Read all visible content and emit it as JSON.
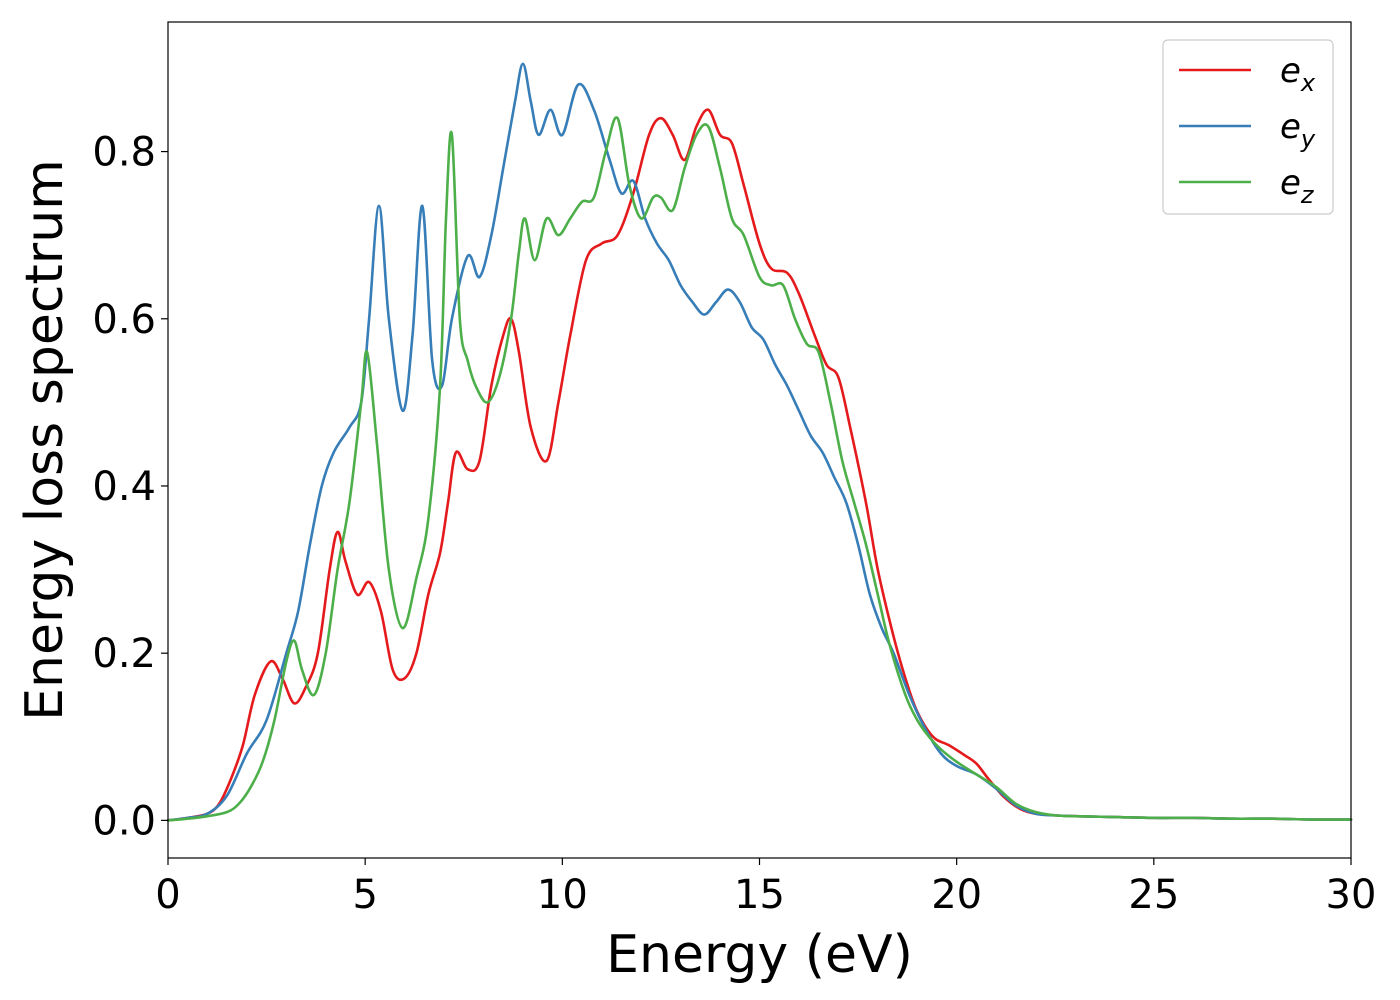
{
  "chart_data": {
    "type": "line",
    "title": "",
    "xlabel": "Energy (eV)",
    "ylabel": "Energy loss spectrum",
    "xlim": [
      0,
      30
    ],
    "ylim": [
      -0.045,
      0.955
    ],
    "xticks": [
      0,
      5,
      10,
      15,
      20,
      25,
      30
    ],
    "xtick_labels": [
      "0",
      "5",
      "10",
      "15",
      "20",
      "25",
      "30"
    ],
    "yticks": [
      0.0,
      0.2,
      0.4,
      0.6,
      0.8
    ],
    "ytick_labels": [
      "0.0",
      "0.2",
      "0.4",
      "0.6",
      "0.8"
    ],
    "grid": false,
    "legend_position": "top-right",
    "series": [
      {
        "name": "e",
        "subscript": "x",
        "color": "#e41a1c",
        "x": [
          0,
          0.5,
          1.0,
          1.3,
          1.6,
          1.9,
          2.2,
          2.6,
          2.9,
          3.2,
          3.5,
          3.8,
          4.1,
          4.3,
          4.5,
          4.8,
          5.1,
          5.4,
          5.7,
          6.0,
          6.3,
          6.6,
          6.9,
          7.1,
          7.3,
          7.6,
          7.9,
          8.2,
          8.5,
          8.7,
          8.9,
          9.2,
          9.6,
          9.9,
          10.2,
          10.6,
          11.0,
          11.4,
          11.8,
          12.2,
          12.5,
          12.8,
          13.1,
          13.4,
          13.7,
          14.0,
          14.3,
          14.6,
          15.0,
          15.3,
          15.7,
          16.0,
          16.4,
          16.7,
          17.0,
          17.3,
          17.7,
          18.0,
          18.4,
          18.7,
          19.0,
          19.4,
          19.8,
          20.2,
          20.5,
          20.8,
          21.2,
          21.6,
          22.0,
          22.5,
          23,
          24,
          25,
          26,
          27,
          28,
          29,
          30
        ],
        "y": [
          0.0,
          0.003,
          0.008,
          0.02,
          0.05,
          0.09,
          0.15,
          0.19,
          0.17,
          0.14,
          0.16,
          0.2,
          0.3,
          0.345,
          0.31,
          0.27,
          0.285,
          0.25,
          0.18,
          0.17,
          0.2,
          0.27,
          0.32,
          0.38,
          0.44,
          0.42,
          0.43,
          0.52,
          0.58,
          0.6,
          0.56,
          0.47,
          0.43,
          0.5,
          0.58,
          0.67,
          0.69,
          0.7,
          0.75,
          0.82,
          0.84,
          0.82,
          0.79,
          0.83,
          0.85,
          0.82,
          0.81,
          0.76,
          0.69,
          0.66,
          0.655,
          0.63,
          0.58,
          0.545,
          0.53,
          0.47,
          0.38,
          0.3,
          0.22,
          0.17,
          0.13,
          0.1,
          0.09,
          0.078,
          0.068,
          0.05,
          0.028,
          0.014,
          0.008,
          0.006,
          0.005,
          0.004,
          0.003,
          0.003,
          0.002,
          0.002,
          0.001,
          0.001
        ]
      },
      {
        "name": "e",
        "subscript": "y",
        "color": "#377eb8",
        "x": [
          0,
          0.5,
          1.0,
          1.5,
          2.0,
          2.5,
          3.0,
          3.3,
          3.6,
          3.9,
          4.2,
          4.6,
          4.9,
          5.1,
          5.35,
          5.6,
          5.95,
          6.2,
          6.45,
          6.7,
          6.95,
          7.2,
          7.6,
          7.9,
          8.2,
          8.5,
          8.8,
          9.0,
          9.2,
          9.4,
          9.7,
          10.0,
          10.4,
          10.8,
          11.2,
          11.5,
          11.8,
          12.1,
          12.4,
          12.7,
          13.0,
          13.3,
          13.6,
          13.9,
          14.2,
          14.5,
          14.8,
          15.1,
          15.4,
          15.7,
          16.0,
          16.3,
          16.6,
          16.9,
          17.2,
          17.5,
          17.8,
          18.1,
          18.4,
          18.8,
          19.2,
          19.6,
          20.0,
          20.5,
          21.0,
          21.5,
          22.0,
          22.5,
          23,
          24,
          25,
          26,
          27,
          28,
          29,
          30
        ],
        "y": [
          0.0,
          0.003,
          0.008,
          0.03,
          0.08,
          0.12,
          0.2,
          0.25,
          0.33,
          0.4,
          0.44,
          0.47,
          0.5,
          0.6,
          0.735,
          0.6,
          0.49,
          0.58,
          0.735,
          0.55,
          0.52,
          0.6,
          0.675,
          0.65,
          0.7,
          0.78,
          0.86,
          0.905,
          0.86,
          0.82,
          0.85,
          0.82,
          0.88,
          0.85,
          0.79,
          0.75,
          0.765,
          0.72,
          0.69,
          0.67,
          0.64,
          0.62,
          0.605,
          0.62,
          0.635,
          0.62,
          0.59,
          0.575,
          0.545,
          0.52,
          0.49,
          0.46,
          0.44,
          0.41,
          0.38,
          0.33,
          0.27,
          0.23,
          0.2,
          0.15,
          0.11,
          0.08,
          0.065,
          0.055,
          0.038,
          0.018,
          0.008,
          0.006,
          0.005,
          0.004,
          0.003,
          0.003,
          0.002,
          0.002,
          0.001,
          0.001
        ]
      },
      {
        "name": "e",
        "subscript": "z",
        "color": "#4daf4a",
        "x": [
          0,
          0.5,
          1.0,
          1.5,
          1.8,
          2.1,
          2.4,
          2.7,
          3.0,
          3.2,
          3.4,
          3.7,
          4.0,
          4.3,
          4.6,
          4.9,
          5.05,
          5.3,
          5.6,
          5.95,
          6.3,
          6.6,
          6.9,
          7.05,
          7.2,
          7.4,
          7.6,
          7.8,
          8.1,
          8.4,
          8.7,
          8.9,
          9.05,
          9.3,
          9.6,
          9.9,
          10.2,
          10.5,
          10.8,
          11.1,
          11.4,
          11.7,
          12.0,
          12.3,
          12.5,
          12.8,
          13.1,
          13.4,
          13.7,
          14.0,
          14.3,
          14.6,
          15.0,
          15.3,
          15.6,
          15.9,
          16.2,
          16.5,
          16.8,
          17.1,
          17.4,
          17.7,
          18.0,
          18.3,
          18.7,
          19.0,
          19.3,
          19.6,
          20.0,
          20.5,
          21.0,
          21.5,
          22.0,
          22.5,
          23,
          24,
          25,
          26,
          27,
          28,
          29,
          30
        ],
        "y": [
          0.0,
          0.002,
          0.005,
          0.01,
          0.02,
          0.04,
          0.07,
          0.12,
          0.19,
          0.215,
          0.18,
          0.15,
          0.2,
          0.3,
          0.38,
          0.5,
          0.56,
          0.45,
          0.3,
          0.23,
          0.29,
          0.36,
          0.52,
          0.72,
          0.82,
          0.6,
          0.55,
          0.52,
          0.5,
          0.53,
          0.6,
          0.68,
          0.72,
          0.67,
          0.72,
          0.7,
          0.72,
          0.74,
          0.745,
          0.8,
          0.84,
          0.76,
          0.72,
          0.745,
          0.745,
          0.73,
          0.78,
          0.82,
          0.83,
          0.78,
          0.72,
          0.7,
          0.65,
          0.64,
          0.64,
          0.6,
          0.57,
          0.56,
          0.5,
          0.43,
          0.38,
          0.33,
          0.27,
          0.21,
          0.15,
          0.12,
          0.1,
          0.085,
          0.07,
          0.055,
          0.04,
          0.02,
          0.01,
          0.006,
          0.005,
          0.004,
          0.003,
          0.003,
          0.002,
          0.002,
          0.001,
          0.001
        ]
      }
    ]
  }
}
